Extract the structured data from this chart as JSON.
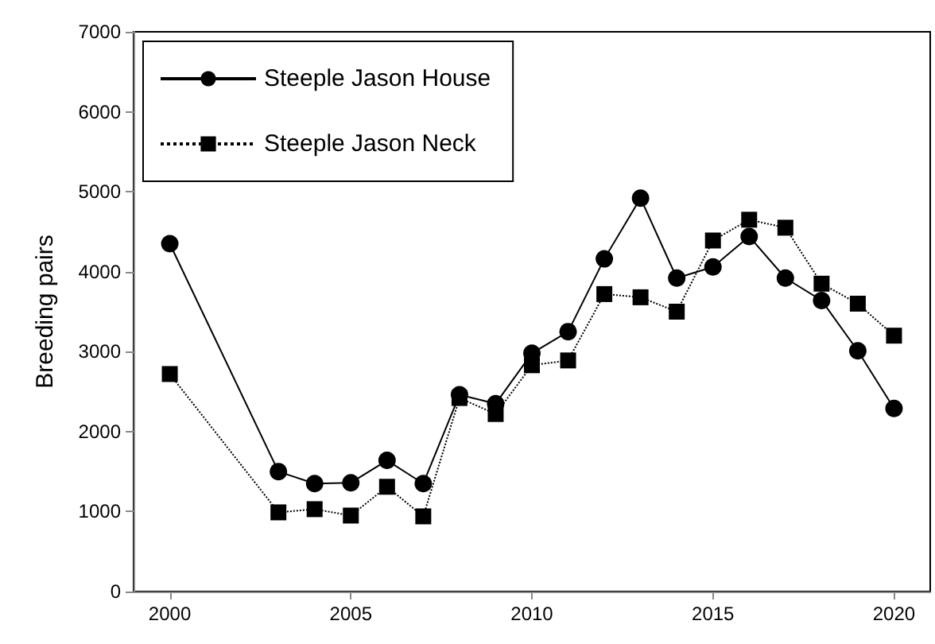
{
  "chart_data": {
    "type": "line",
    "ylabel": "Breeding pairs",
    "x": [
      2000,
      2003,
      2004,
      2005,
      2006,
      2007,
      2008,
      2009,
      2010,
      2011,
      2012,
      2013,
      2014,
      2015,
      2016,
      2017,
      2018,
      2019,
      2020
    ],
    "series": [
      {
        "name": "Steeple Jason House",
        "color": "#000000",
        "marker": "circle",
        "line_style": "solid",
        "values": [
          4350,
          1500,
          1350,
          1360,
          1640,
          1350,
          2460,
          2350,
          2980,
          3250,
          4160,
          4920,
          3920,
          4060,
          4440,
          3920,
          3640,
          3010,
          2290
        ]
      },
      {
        "name": "Steeple Jason Neck",
        "color": "#000000",
        "marker": "square",
        "line_style": "dotted",
        "values": [
          2720,
          990,
          1030,
          950,
          1310,
          940,
          2420,
          2220,
          2830,
          2890,
          3720,
          3680,
          3500,
          4390,
          4650,
          4550,
          3850,
          3600,
          3200
        ]
      }
    ],
    "xlim": [
      1999,
      2021
    ],
    "xticks": [
      2000,
      2005,
      2010,
      2015,
      2020
    ],
    "ylim": [
      0,
      7000
    ],
    "yticks": [
      0,
      1000,
      2000,
      3000,
      4000,
      5000,
      6000,
      7000
    ],
    "grid": false,
    "legend": "top left"
  }
}
